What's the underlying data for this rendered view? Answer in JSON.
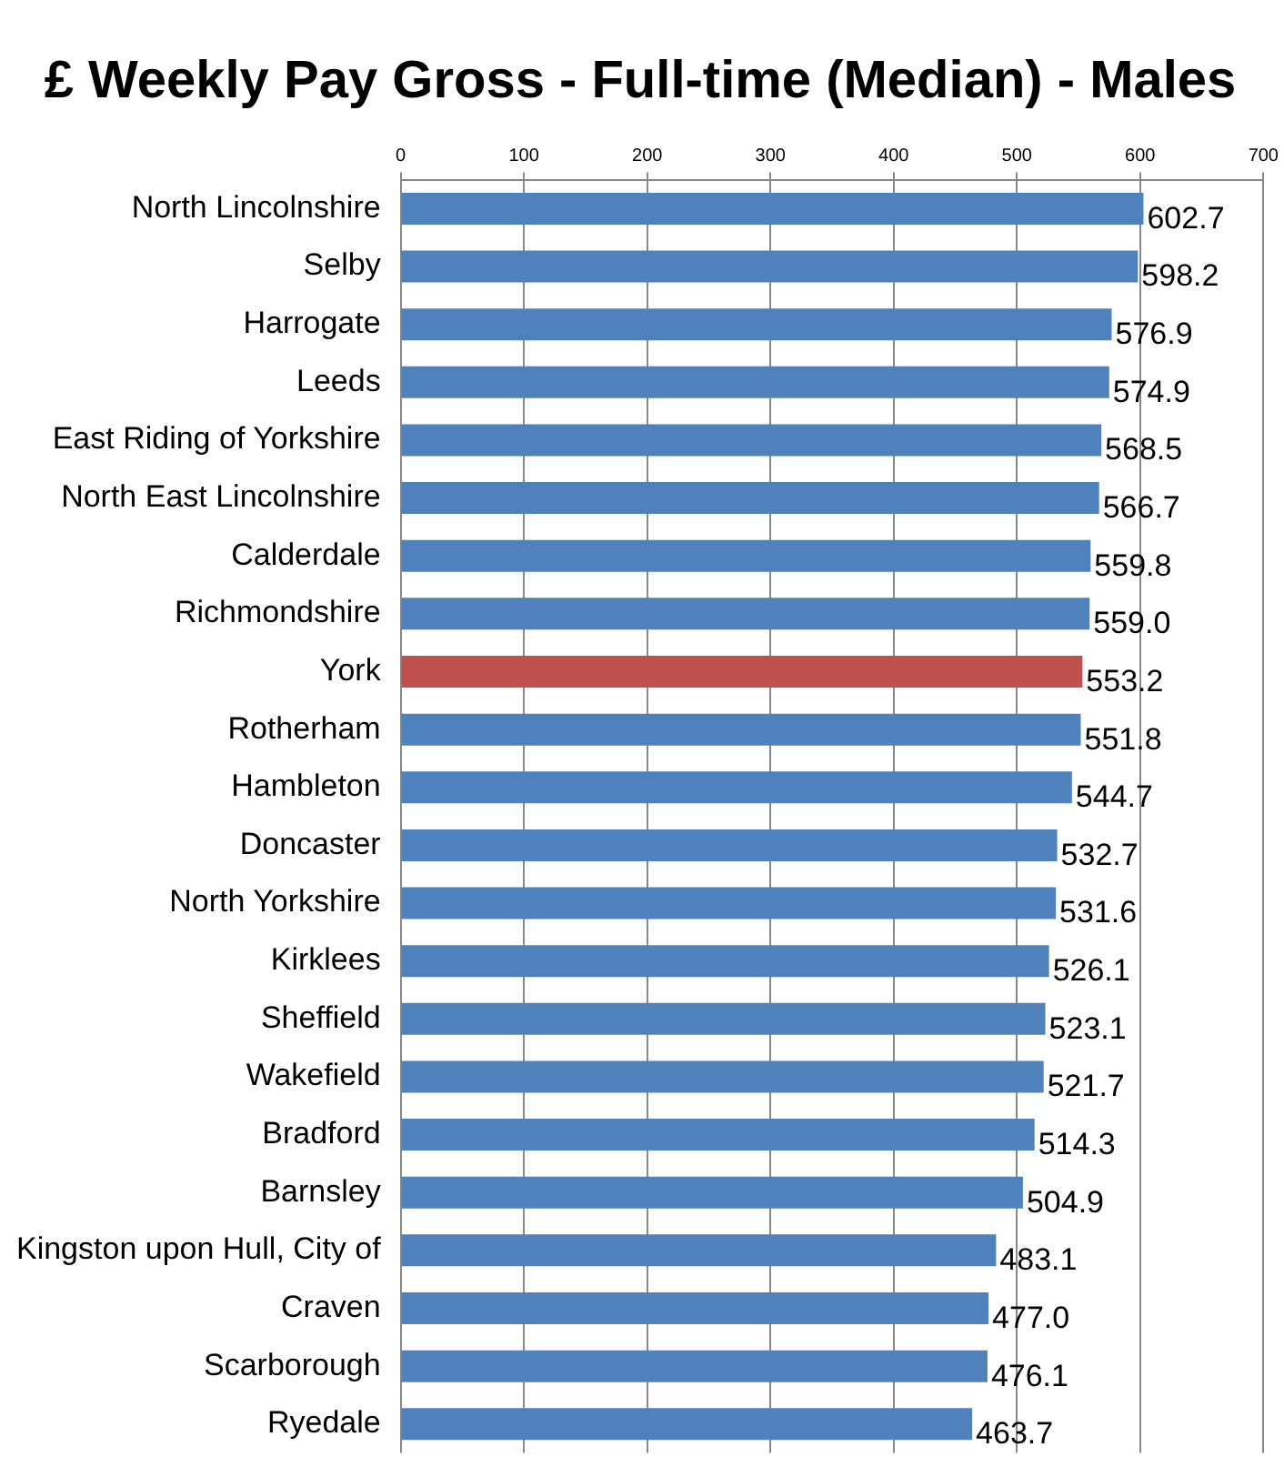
{
  "chart_data": {
    "type": "bar",
    "orientation": "horizontal",
    "title": "£ Weekly Pay Gross - Full-time (Median) - Males",
    "categories": [
      "North Lincolnshire",
      "Selby",
      "Harrogate",
      "Leeds",
      "East Riding of Yorkshire",
      "North East Lincolnshire",
      "Calderdale",
      "Richmondshire",
      "York",
      "Rotherham",
      "Hambleton",
      "Doncaster",
      "North Yorkshire",
      "Kirklees",
      "Sheffield",
      "Wakefield",
      "Bradford",
      "Barnsley",
      "Kingston upon Hull, City of",
      "Craven",
      "Scarborough",
      "Ryedale"
    ],
    "values": [
      602.7,
      598.2,
      576.9,
      574.9,
      568.5,
      566.7,
      559.8,
      559.0,
      553.2,
      551.8,
      544.7,
      532.7,
      531.6,
      526.1,
      523.1,
      521.7,
      514.3,
      504.9,
      483.1,
      477.0,
      476.1,
      463.7
    ],
    "value_labels": [
      "602.7",
      "598.2",
      "576.9",
      "574.9",
      "568.5",
      "566.7",
      "559.8",
      "559.0",
      "553.2",
      "551.8",
      "544.7",
      "532.7",
      "531.6",
      "526.1",
      "523.1",
      "521.7",
      "514.3",
      "504.9",
      "483.1",
      "477.0",
      "476.1",
      "463.7"
    ],
    "colors": [
      "#4f81bd",
      "#4f81bd",
      "#4f81bd",
      "#4f81bd",
      "#4f81bd",
      "#4f81bd",
      "#4f81bd",
      "#4f81bd",
      "#c0504d",
      "#4f81bd",
      "#4f81bd",
      "#4f81bd",
      "#4f81bd",
      "#4f81bd",
      "#4f81bd",
      "#4f81bd",
      "#4f81bd",
      "#4f81bd",
      "#4f81bd",
      "#4f81bd",
      "#4f81bd",
      "#4f81bd"
    ],
    "xlim": [
      0,
      700
    ],
    "xticks": [
      0,
      100,
      200,
      300,
      400,
      500,
      600,
      700
    ],
    "grid": "x"
  }
}
